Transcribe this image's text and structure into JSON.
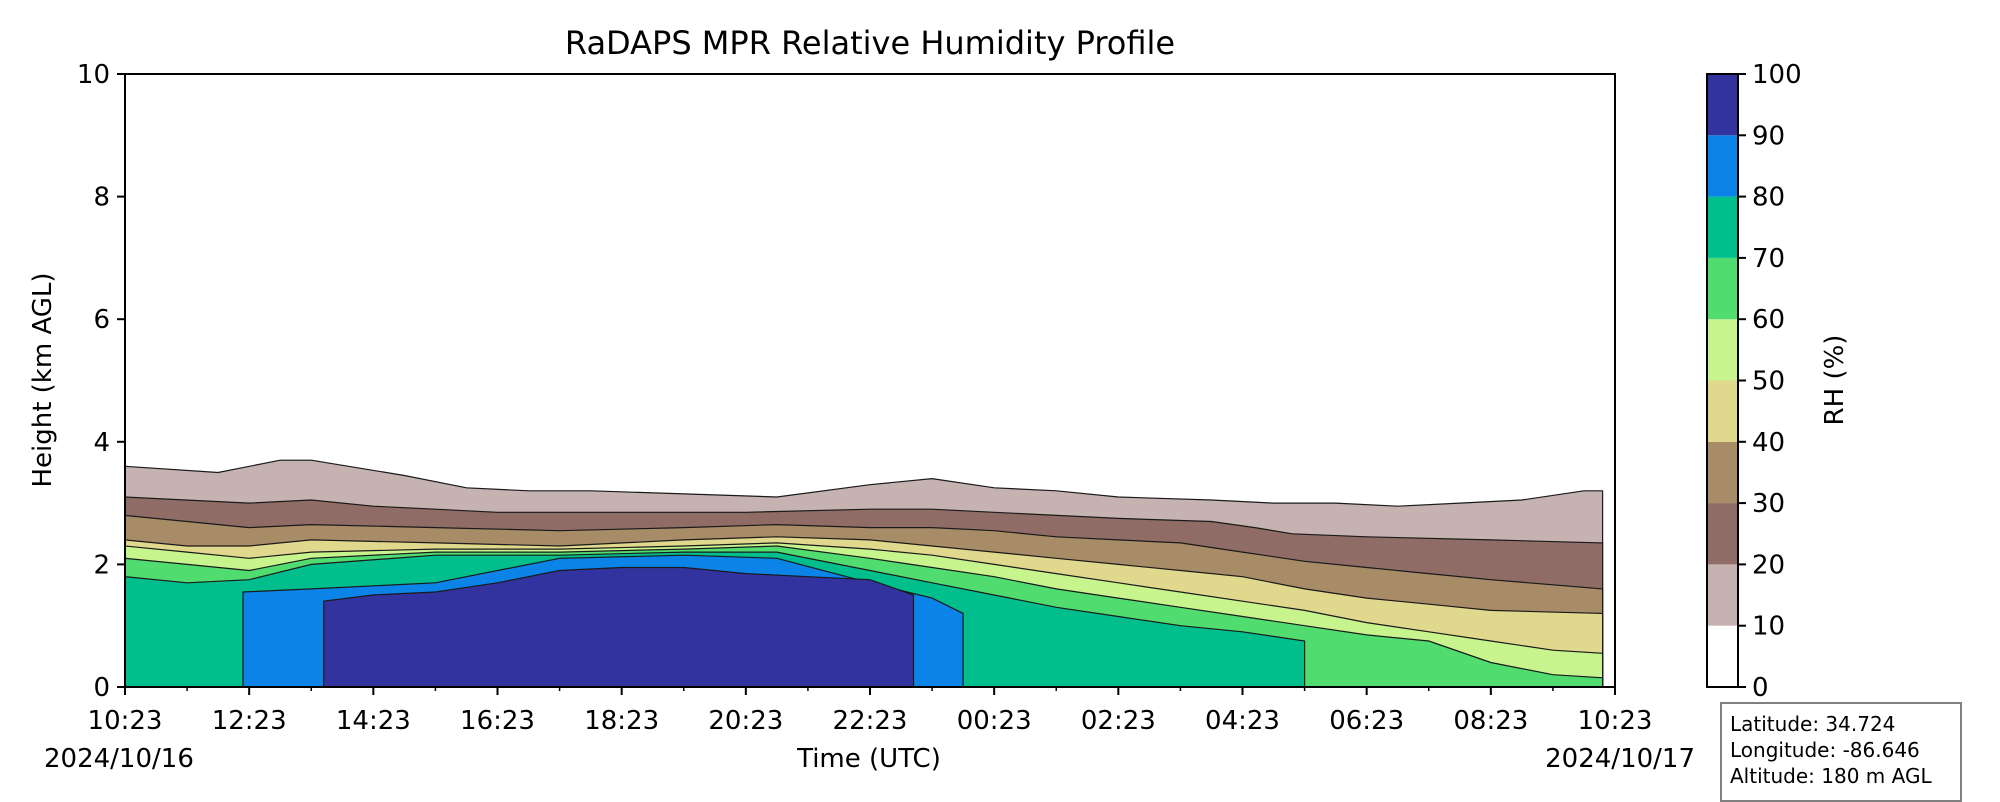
{
  "chart_data": {
    "type": "contour",
    "title": "RaDAPS MPR Relative Humidity Profile",
    "xlabel": "Time (UTC)",
    "ylabel": "Height (km AGL)",
    "x_ticks": [
      "10:23",
      "12:23",
      "14:23",
      "16:23",
      "18:23",
      "20:23",
      "22:23",
      "00:23",
      "02:23",
      "04:23",
      "06:23",
      "08:23",
      "10:23"
    ],
    "x_start_date": "2024/10/16",
    "x_end_date": "2024/10/17",
    "y_ticks": [
      0,
      2,
      4,
      6,
      8,
      10
    ],
    "ylim": [
      0,
      10
    ],
    "x_hours": [
      0,
      24
    ],
    "colorbar": {
      "label": "RH (%)",
      "levels": [
        0,
        10,
        20,
        30,
        40,
        50,
        60,
        70,
        80,
        90,
        100
      ],
      "colors": [
        "#ffffff",
        "#c6b3b1",
        "#8f6c65",
        "#a88b67",
        "#e0d88c",
        "#c8f48e",
        "#50dc6f",
        "#00bf8c",
        "#0b83e7",
        "#3333a0"
      ]
    },
    "series": [
      {
        "name": "10",
        "color": "#c6b3b1",
        "x": [
          0,
          1.5,
          2.5,
          3.0,
          4.5,
          5.5,
          6.5,
          7.5,
          9.0,
          10.5,
          12.0,
          13.0,
          14.0,
          15.0,
          16.0,
          17.5,
          18.5,
          19.5,
          20.5,
          21.5,
          22.5,
          23.5,
          23.8
        ],
        "y": [
          3.6,
          3.5,
          3.7,
          3.7,
          3.45,
          3.25,
          3.2,
          3.2,
          3.15,
          3.1,
          3.3,
          3.4,
          3.25,
          3.2,
          3.1,
          3.05,
          3.0,
          3.0,
          2.95,
          3.0,
          3.05,
          3.2,
          3.2
        ]
      },
      {
        "name": "20",
        "color": "#8f6c65",
        "x": [
          0,
          2,
          3,
          4,
          5,
          6,
          8,
          10,
          12,
          13,
          14,
          16,
          17.5,
          18.2,
          18.8,
          20,
          22,
          23.8
        ],
        "y": [
          3.1,
          3.0,
          3.05,
          2.95,
          2.9,
          2.85,
          2.85,
          2.85,
          2.9,
          2.9,
          2.85,
          2.75,
          2.7,
          2.6,
          2.5,
          2.45,
          2.4,
          2.35
        ]
      },
      {
        "name": "30",
        "color": "#a88b67",
        "x": [
          0,
          1,
          2,
          3,
          5,
          7,
          9,
          10.5,
          12,
          13,
          14,
          15,
          16,
          17,
          18,
          19,
          20,
          21,
          22,
          23.8
        ],
        "y": [
          2.8,
          2.7,
          2.6,
          2.65,
          2.6,
          2.55,
          2.6,
          2.65,
          2.6,
          2.6,
          2.55,
          2.45,
          2.4,
          2.35,
          2.2,
          2.05,
          1.95,
          1.85,
          1.75,
          1.6
        ]
      },
      {
        "name": "40",
        "color": "#e0d88c",
        "x": [
          0,
          1,
          2,
          3,
          5,
          7,
          9,
          10.5,
          12,
          13,
          14,
          15,
          16,
          17,
          18,
          19,
          20,
          21,
          22,
          23.8
        ],
        "y": [
          2.4,
          2.3,
          2.3,
          2.4,
          2.35,
          2.3,
          2.4,
          2.45,
          2.4,
          2.3,
          2.2,
          2.1,
          2.0,
          1.9,
          1.8,
          1.6,
          1.45,
          1.35,
          1.25,
          1.2
        ]
      },
      {
        "name": "50",
        "color": "#c8f48e",
        "x": [
          0,
          1,
          2,
          3,
          5,
          7,
          9,
          10.5,
          12,
          13,
          14,
          15,
          16,
          17,
          18,
          19,
          20,
          21,
          22,
          23,
          23.8
        ],
        "y": [
          2.3,
          2.2,
          2.1,
          2.2,
          2.25,
          2.25,
          2.3,
          2.35,
          2.25,
          2.15,
          2.0,
          1.85,
          1.7,
          1.55,
          1.4,
          1.25,
          1.05,
          0.9,
          0.75,
          0.6,
          0.55
        ]
      },
      {
        "name": "60",
        "color": "#50dc6f",
        "x": [
          0,
          1,
          2,
          3,
          5,
          7,
          9,
          10.5,
          12,
          13,
          14,
          15,
          16,
          17,
          18,
          19,
          20,
          21,
          22,
          23,
          23.8
        ],
        "y": [
          2.1,
          2.0,
          1.9,
          2.1,
          2.2,
          2.2,
          2.25,
          2.3,
          2.1,
          1.95,
          1.8,
          1.6,
          1.45,
          1.3,
          1.15,
          1.0,
          0.85,
          0.75,
          0.4,
          0.2,
          0.15
        ]
      },
      {
        "name": "70",
        "color": "#00bf8c",
        "x": [
          0,
          1,
          2,
          3,
          5,
          7,
          9,
          10.5,
          12,
          13,
          14,
          15,
          16,
          17,
          18,
          19
        ],
        "y": [
          1.8,
          1.7,
          1.75,
          2.0,
          2.15,
          2.15,
          2.2,
          2.2,
          1.9,
          1.7,
          1.5,
          1.3,
          1.15,
          1.0,
          0.9,
          0.75
        ]
      },
      {
        "name": "80",
        "color": "#0b83e7",
        "x": [
          1.9,
          3,
          5,
          7,
          9,
          10.5,
          12,
          13,
          13.5
        ],
        "y": [
          1.55,
          1.6,
          1.7,
          2.1,
          2.15,
          2.1,
          1.7,
          1.45,
          1.2
        ]
      },
      {
        "name": "90",
        "color": "#3333a0",
        "x": [
          3.2,
          4,
          5,
          6,
          7,
          8,
          9,
          10,
          11,
          12,
          12.7
        ],
        "y": [
          1.4,
          1.5,
          1.55,
          1.7,
          1.9,
          1.95,
          1.95,
          1.85,
          1.8,
          1.75,
          1.5
        ]
      }
    ]
  },
  "info": {
    "latitude": "Latitude: 34.724",
    "longitude": "Longitude: -86.646",
    "altitude": "Altitude: 180 m AGL"
  }
}
